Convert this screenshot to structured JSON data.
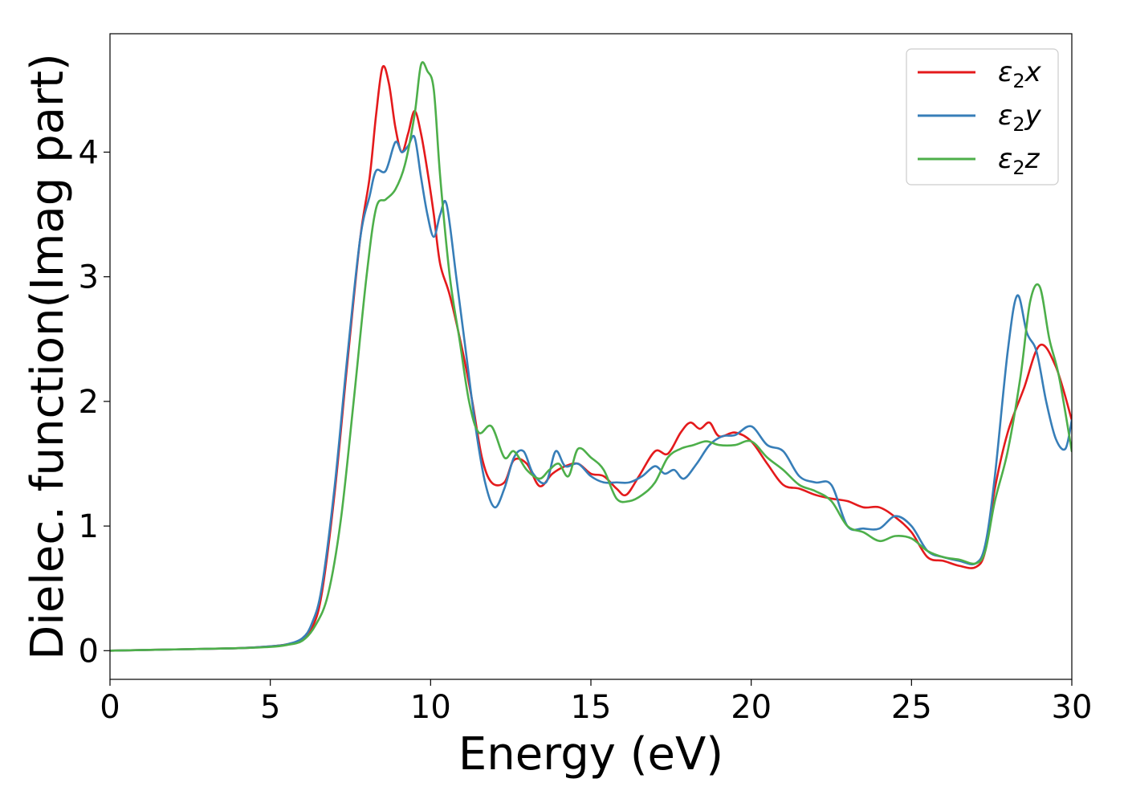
{
  "chart_data": {
    "type": "line",
    "title": "",
    "xlabel": "Energy (eV)",
    "ylabel": "Dielec. function(Imag part)",
    "xlim": [
      0,
      30
    ],
    "ylim": [
      -0.23,
      4.95
    ],
    "xticks": [
      0,
      5,
      10,
      15,
      20,
      25,
      30
    ],
    "yticks": [
      0,
      1,
      2,
      3,
      4
    ],
    "grid": false,
    "legend_position": "top-right",
    "series": [
      {
        "name": "ε2x",
        "label_main": "ε",
        "label_sub": "2",
        "label_tail": "x",
        "color": "#e41a1c",
        "points": [
          [
            0,
            0
          ],
          [
            2,
            0.01
          ],
          [
            4,
            0.02
          ],
          [
            5,
            0.035
          ],
          [
            5.5,
            0.05
          ],
          [
            6,
            0.09
          ],
          [
            6.3,
            0.18
          ],
          [
            6.6,
            0.45
          ],
          [
            7,
            1.25
          ],
          [
            7.4,
            2.3
          ],
          [
            7.8,
            3.3
          ],
          [
            8.1,
            3.8
          ],
          [
            8.3,
            4.3
          ],
          [
            8.5,
            4.68
          ],
          [
            8.7,
            4.55
          ],
          [
            8.9,
            4.2
          ],
          [
            9.1,
            4.0
          ],
          [
            9.3,
            4.15
          ],
          [
            9.5,
            4.33
          ],
          [
            9.7,
            4.15
          ],
          [
            9.9,
            3.85
          ],
          [
            10.1,
            3.5
          ],
          [
            10.3,
            3.1
          ],
          [
            10.6,
            2.85
          ],
          [
            11,
            2.4
          ],
          [
            11.3,
            2.0
          ],
          [
            11.6,
            1.55
          ],
          [
            11.9,
            1.35
          ],
          [
            12.3,
            1.35
          ],
          [
            12.6,
            1.53
          ],
          [
            13,
            1.5
          ],
          [
            13.4,
            1.32
          ],
          [
            13.8,
            1.42
          ],
          [
            14.2,
            1.48
          ],
          [
            14.6,
            1.5
          ],
          [
            15,
            1.42
          ],
          [
            15.4,
            1.4
          ],
          [
            15.8,
            1.3
          ],
          [
            16.1,
            1.25
          ],
          [
            16.5,
            1.4
          ],
          [
            17,
            1.6
          ],
          [
            17.4,
            1.58
          ],
          [
            17.8,
            1.75
          ],
          [
            18.1,
            1.83
          ],
          [
            18.4,
            1.78
          ],
          [
            18.7,
            1.83
          ],
          [
            19,
            1.72
          ],
          [
            19.5,
            1.75
          ],
          [
            20,
            1.68
          ],
          [
            20.5,
            1.5
          ],
          [
            21,
            1.33
          ],
          [
            21.5,
            1.3
          ],
          [
            22,
            1.25
          ],
          [
            22.5,
            1.22
          ],
          [
            23,
            1.2
          ],
          [
            23.5,
            1.15
          ],
          [
            24,
            1.15
          ],
          [
            24.5,
            1.07
          ],
          [
            25,
            0.95
          ],
          [
            25.5,
            0.75
          ],
          [
            26,
            0.72
          ],
          [
            26.5,
            0.68
          ],
          [
            27,
            0.67
          ],
          [
            27.3,
            0.8
          ],
          [
            27.6,
            1.3
          ],
          [
            28,
            1.75
          ],
          [
            28.5,
            2.1
          ],
          [
            29,
            2.45
          ],
          [
            29.5,
            2.28
          ],
          [
            30,
            1.85
          ]
        ]
      },
      {
        "name": "ε2y",
        "label_main": "ε",
        "label_sub": "2",
        "label_tail": "y",
        "color": "#377eb8",
        "points": [
          [
            0,
            0
          ],
          [
            2,
            0.01
          ],
          [
            4,
            0.02
          ],
          [
            5,
            0.035
          ],
          [
            5.5,
            0.05
          ],
          [
            6,
            0.1
          ],
          [
            6.3,
            0.22
          ],
          [
            6.6,
            0.5
          ],
          [
            7,
            1.3
          ],
          [
            7.4,
            2.35
          ],
          [
            7.8,
            3.3
          ],
          [
            8.1,
            3.65
          ],
          [
            8.3,
            3.85
          ],
          [
            8.6,
            3.85
          ],
          [
            8.9,
            4.08
          ],
          [
            9.1,
            4.0
          ],
          [
            9.3,
            4.05
          ],
          [
            9.5,
            4.12
          ],
          [
            9.7,
            3.8
          ],
          [
            9.9,
            3.5
          ],
          [
            10.1,
            3.32
          ],
          [
            10.3,
            3.5
          ],
          [
            10.5,
            3.58
          ],
          [
            10.8,
            3.0
          ],
          [
            11.1,
            2.4
          ],
          [
            11.4,
            1.8
          ],
          [
            11.7,
            1.35
          ],
          [
            12,
            1.15
          ],
          [
            12.3,
            1.3
          ],
          [
            12.6,
            1.55
          ],
          [
            12.9,
            1.6
          ],
          [
            13.2,
            1.42
          ],
          [
            13.6,
            1.35
          ],
          [
            13.9,
            1.6
          ],
          [
            14.2,
            1.48
          ],
          [
            14.6,
            1.5
          ],
          [
            15,
            1.4
          ],
          [
            15.4,
            1.35
          ],
          [
            15.8,
            1.35
          ],
          [
            16.2,
            1.35
          ],
          [
            16.6,
            1.4
          ],
          [
            17,
            1.48
          ],
          [
            17.3,
            1.42
          ],
          [
            17.6,
            1.45
          ],
          [
            17.9,
            1.38
          ],
          [
            18.3,
            1.5
          ],
          [
            18.7,
            1.65
          ],
          [
            19.1,
            1.72
          ],
          [
            19.5,
            1.73
          ],
          [
            20,
            1.8
          ],
          [
            20.5,
            1.65
          ],
          [
            21,
            1.6
          ],
          [
            21.5,
            1.4
          ],
          [
            22,
            1.35
          ],
          [
            22.5,
            1.33
          ],
          [
            23,
            1.0
          ],
          [
            23.5,
            0.98
          ],
          [
            24,
            0.98
          ],
          [
            24.5,
            1.08
          ],
          [
            25,
            1.0
          ],
          [
            25.5,
            0.8
          ],
          [
            26,
            0.75
          ],
          [
            26.5,
            0.72
          ],
          [
            27,
            0.7
          ],
          [
            27.3,
            0.85
          ],
          [
            27.6,
            1.4
          ],
          [
            28,
            2.4
          ],
          [
            28.3,
            2.85
          ],
          [
            28.6,
            2.55
          ],
          [
            28.9,
            2.4
          ],
          [
            29.2,
            2.0
          ],
          [
            29.5,
            1.7
          ],
          [
            29.8,
            1.62
          ],
          [
            30,
            1.85
          ]
        ]
      },
      {
        "name": "ε2z",
        "label_main": "ε",
        "label_sub": "2",
        "label_tail": "z",
        "color": "#4daf4a",
        "points": [
          [
            0,
            0
          ],
          [
            2,
            0.01
          ],
          [
            4,
            0.02
          ],
          [
            5,
            0.03
          ],
          [
            5.5,
            0.045
          ],
          [
            6,
            0.08
          ],
          [
            6.4,
            0.2
          ],
          [
            6.8,
            0.45
          ],
          [
            7.2,
            1.05
          ],
          [
            7.6,
            2.0
          ],
          [
            8,
            3.0
          ],
          [
            8.3,
            3.55
          ],
          [
            8.6,
            3.62
          ],
          [
            8.9,
            3.7
          ],
          [
            9.2,
            3.9
          ],
          [
            9.5,
            4.3
          ],
          [
            9.7,
            4.7
          ],
          [
            9.9,
            4.65
          ],
          [
            10.1,
            4.5
          ],
          [
            10.3,
            3.8
          ],
          [
            10.6,
            3.0
          ],
          [
            10.9,
            2.5
          ],
          [
            11.2,
            2.0
          ],
          [
            11.5,
            1.75
          ],
          [
            11.9,
            1.8
          ],
          [
            12.3,
            1.55
          ],
          [
            12.6,
            1.6
          ],
          [
            13,
            1.45
          ],
          [
            13.4,
            1.38
          ],
          [
            13.7,
            1.45
          ],
          [
            14,
            1.5
          ],
          [
            14.3,
            1.4
          ],
          [
            14.6,
            1.62
          ],
          [
            15,
            1.55
          ],
          [
            15.4,
            1.45
          ],
          [
            15.8,
            1.22
          ],
          [
            16.2,
            1.2
          ],
          [
            16.6,
            1.25
          ],
          [
            17,
            1.35
          ],
          [
            17.4,
            1.55
          ],
          [
            17.8,
            1.62
          ],
          [
            18.2,
            1.65
          ],
          [
            18.6,
            1.68
          ],
          [
            19,
            1.65
          ],
          [
            19.5,
            1.65
          ],
          [
            20,
            1.68
          ],
          [
            20.5,
            1.55
          ],
          [
            21,
            1.45
          ],
          [
            21.5,
            1.33
          ],
          [
            22,
            1.28
          ],
          [
            22.5,
            1.2
          ],
          [
            23,
            1.0
          ],
          [
            23.5,
            0.95
          ],
          [
            24,
            0.88
          ],
          [
            24.5,
            0.92
          ],
          [
            25,
            0.9
          ],
          [
            25.5,
            0.8
          ],
          [
            26,
            0.75
          ],
          [
            26.5,
            0.73
          ],
          [
            27,
            0.7
          ],
          [
            27.3,
            0.8
          ],
          [
            27.6,
            1.2
          ],
          [
            28,
            1.6
          ],
          [
            28.4,
            2.2
          ],
          [
            28.7,
            2.8
          ],
          [
            29,
            2.92
          ],
          [
            29.3,
            2.5
          ],
          [
            29.6,
            2.2
          ],
          [
            30,
            1.6
          ]
        ]
      }
    ]
  }
}
